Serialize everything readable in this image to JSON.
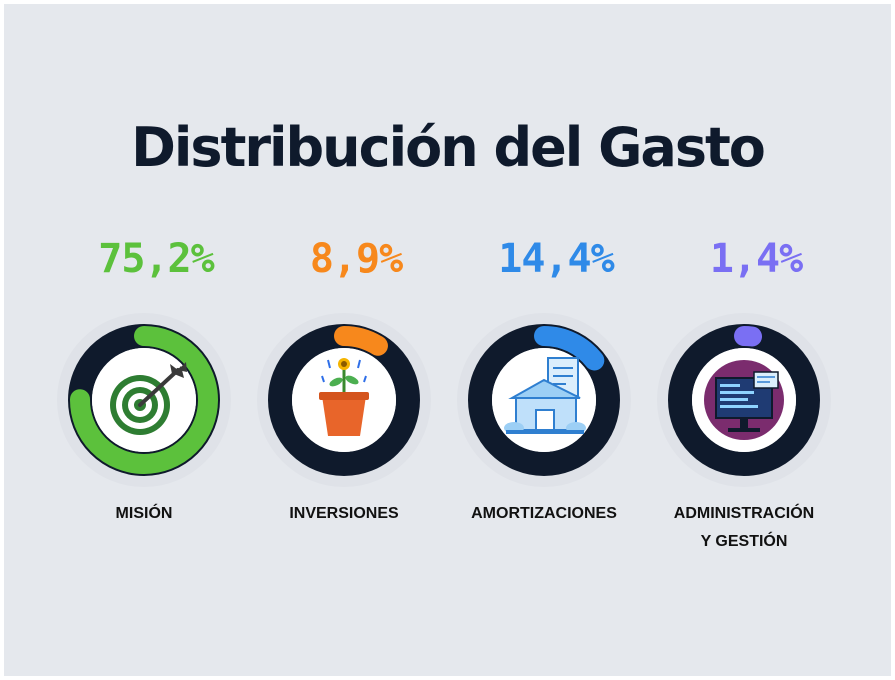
{
  "title": "Distribución del Gasto",
  "chart_data": {
    "type": "pie",
    "title": "Distribución del Gasto",
    "categories": [
      "MISIÓN",
      "INVERSIONES",
      "AMORTIZACIONES",
      "ADMINISTRACIÓN Y GESTIÓN"
    ],
    "values": [
      75.2,
      8.9,
      14.4,
      1.4
    ],
    "labels": [
      "75,2%",
      "8,9%",
      "14,4%",
      "1,4%"
    ],
    "label_lines": [
      [
        "MISIÓN"
      ],
      [
        "INVERSIONES"
      ],
      [
        "AMORTIZACIONES"
      ],
      [
        "ADMINISTRACIÓN",
        "Y GESTIÓN"
      ]
    ],
    "colors": [
      "#5cc13c",
      "#f7881c",
      "#2f8ae8",
      "#7a6ff3"
    ],
    "icons": [
      "target-icon",
      "invest-plant-icon",
      "building-invoice-icon",
      "computer-screen-icon"
    ]
  }
}
